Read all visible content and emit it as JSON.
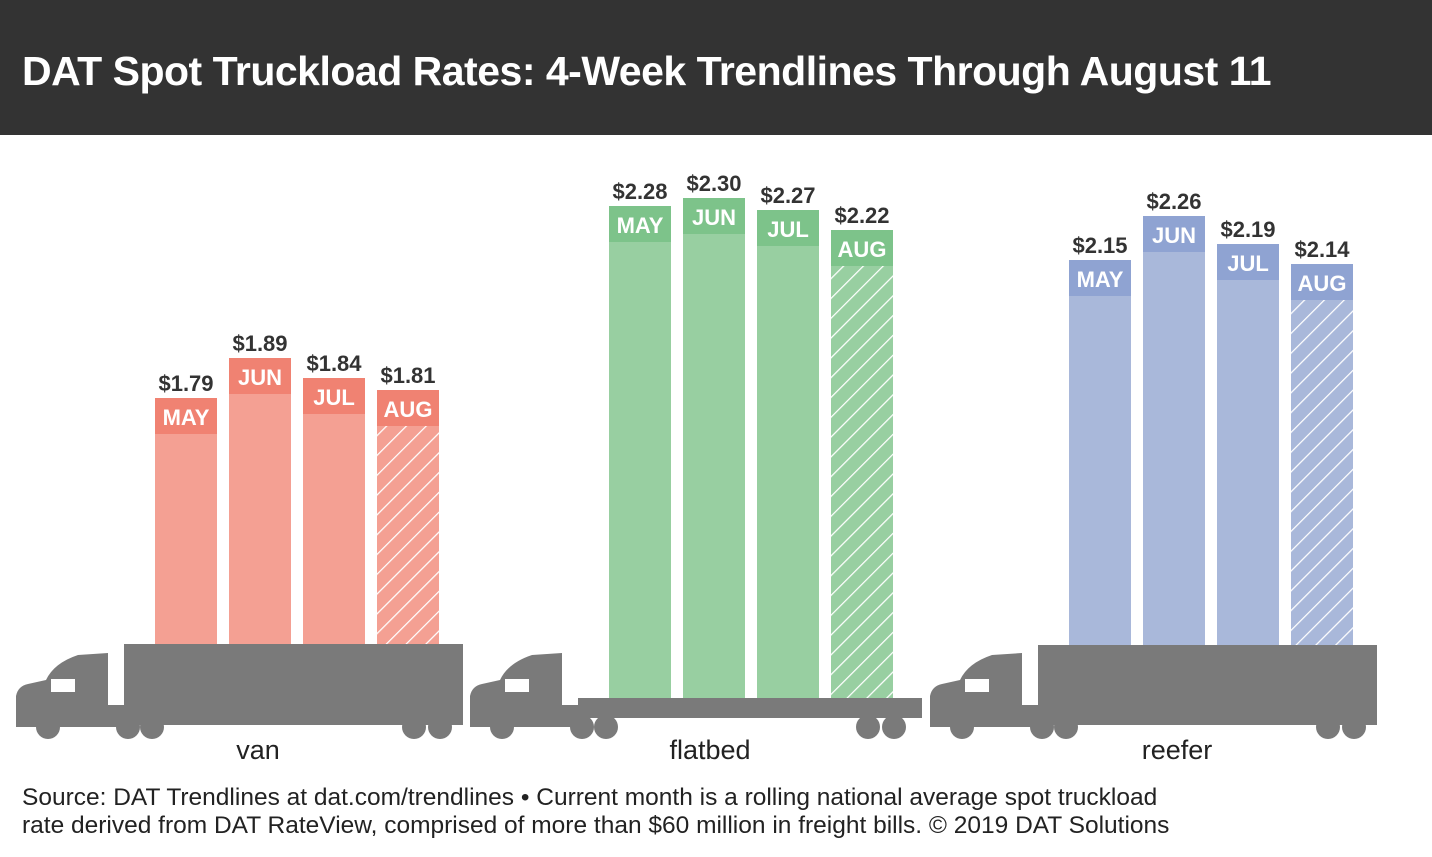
{
  "title": "DAT Spot Truckload Rates: 4-Week Trendlines Through August 11",
  "footnote": {
    "line1": "Source: DAT Trendlines at dat.com/trendlines • Current month is a rolling national average spot truckload",
    "line2": "rate derived from DAT RateView, comprised of more than $60 million in freight bills. © 2019 DAT Solutions"
  },
  "colors": {
    "title_bg": "#333333",
    "truck": "#7a7a7a"
  },
  "chart_data": {
    "type": "bar",
    "categories": [
      "MAY",
      "JUN",
      "JUL",
      "AUG"
    ],
    "unit": "$ per mile",
    "note": "AUG bars hatched (current month)",
    "groups": [
      {
        "name": "van",
        "values": [
          1.79,
          1.89,
          1.84,
          1.81
        ],
        "labels": [
          "$1.79",
          "$1.89",
          "$1.84",
          "$1.81"
        ],
        "color": "#f4a093",
        "label_color": "#f08272",
        "truck": "van-truck"
      },
      {
        "name": "flatbed",
        "values": [
          2.28,
          2.3,
          2.27,
          2.22
        ],
        "labels": [
          "$2.28",
          "$2.30",
          "$2.27",
          "$2.22"
        ],
        "color": "#98cfa1",
        "label_color": "#7dc38a",
        "truck": "flatbed-truck"
      },
      {
        "name": "reefer",
        "values": [
          2.15,
          2.26,
          2.19,
          2.14
        ],
        "labels": [
          "$2.15",
          "$2.26",
          "$2.19",
          "$2.14"
        ],
        "color": "#a9b8da",
        "label_color": "#8fa3d2",
        "truck": "reefer-truck"
      }
    ]
  }
}
